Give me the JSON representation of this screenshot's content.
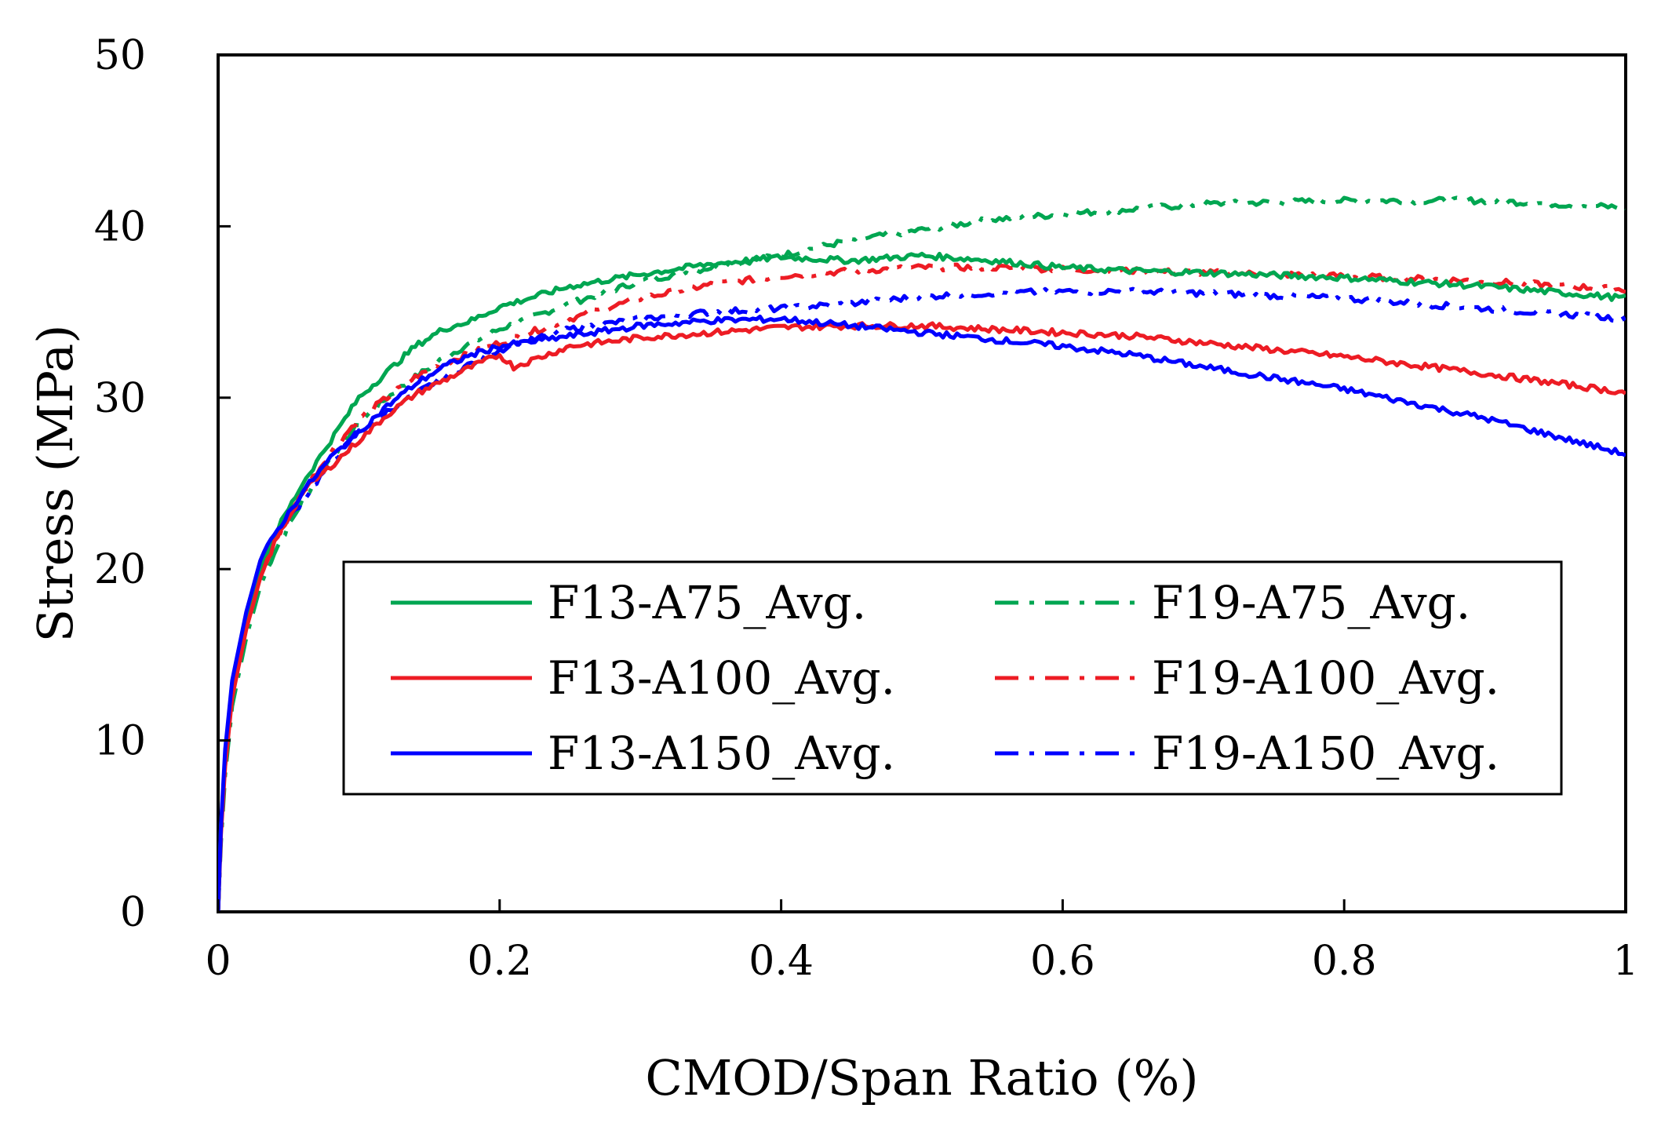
{
  "chart_data": {
    "type": "line",
    "title": "",
    "xlabel": "CMOD/Span Ratio (%)",
    "ylabel": "Stress (MPa)",
    "xlim": [
      0,
      1
    ],
    "ylim": [
      0,
      50
    ],
    "xticks": [
      0,
      0.2,
      0.4,
      0.6,
      0.8,
      1
    ],
    "xtick_labels": [
      "0",
      "0.2",
      "0.4",
      "0.6",
      "0.8",
      "1"
    ],
    "yticks": [
      0,
      10,
      20,
      30,
      40,
      50
    ],
    "ytick_labels": [
      "0",
      "10",
      "20",
      "30",
      "40",
      "50"
    ],
    "grid": false,
    "legend_position": "lower-right inside",
    "series": [
      {
        "name": "F13-A75_Avg.",
        "color": "#00A651",
        "style": "solid",
        "x": [
          0,
          0.002,
          0.005,
          0.01,
          0.02,
          0.03,
          0.04,
          0.06,
          0.08,
          0.1,
          0.12,
          0.14,
          0.16,
          0.18,
          0.2,
          0.25,
          0.3,
          0.35,
          0.4,
          0.45,
          0.5,
          0.55,
          0.6,
          0.65,
          0.7,
          0.8,
          0.9,
          1.0
        ],
        "y": [
          0,
          5,
          9,
          13,
          17,
          20,
          22,
          25,
          27.5,
          30,
          31.5,
          33,
          34,
          34.5,
          35.3,
          36.5,
          37.2,
          37.8,
          38.2,
          38.0,
          38.3,
          38.0,
          37.6,
          37.4,
          37.3,
          37.0,
          36.5,
          35.8
        ]
      },
      {
        "name": "F13-A100_Avg.",
        "color": "#ED1C24",
        "style": "solid",
        "x": [
          0,
          0.002,
          0.005,
          0.01,
          0.02,
          0.03,
          0.04,
          0.06,
          0.08,
          0.1,
          0.12,
          0.14,
          0.16,
          0.18,
          0.2,
          0.21,
          0.25,
          0.3,
          0.35,
          0.4,
          0.45,
          0.5,
          0.55,
          0.6,
          0.65,
          0.7,
          0.8,
          0.9,
          1.0
        ],
        "y": [
          0,
          4.5,
          8.5,
          12.5,
          16.5,
          19.5,
          21.5,
          24.5,
          26,
          27.5,
          29,
          30.2,
          31,
          31.8,
          32.5,
          31.8,
          33,
          33.5,
          33.8,
          34.1,
          34.2,
          34.2,
          34.0,
          33.8,
          33.6,
          33.2,
          32.4,
          31.4,
          30.3
        ]
      },
      {
        "name": "F13-A150_Avg.",
        "color": "#0000FF",
        "style": "solid",
        "x": [
          0,
          0.002,
          0.005,
          0.01,
          0.02,
          0.03,
          0.04,
          0.06,
          0.08,
          0.1,
          0.12,
          0.14,
          0.16,
          0.18,
          0.2,
          0.25,
          0.3,
          0.35,
          0.4,
          0.45,
          0.5,
          0.55,
          0.6,
          0.65,
          0.7,
          0.8,
          0.9,
          1.0
        ],
        "y": [
          0,
          5,
          9.5,
          13.5,
          17.5,
          20.5,
          22,
          24.5,
          26.5,
          28,
          29.5,
          30.8,
          31.8,
          32.5,
          33.0,
          33.6,
          34.2,
          34.5,
          34.6,
          34.2,
          33.8,
          33.4,
          33.0,
          32.5,
          31.8,
          30.5,
          28.8,
          26.7
        ]
      },
      {
        "name": "F19-A75_Avg.",
        "color": "#00A651",
        "style": "dashdot",
        "x": [
          0,
          0.002,
          0.005,
          0.01,
          0.02,
          0.03,
          0.04,
          0.06,
          0.08,
          0.1,
          0.12,
          0.14,
          0.16,
          0.18,
          0.2,
          0.25,
          0.3,
          0.35,
          0.4,
          0.45,
          0.5,
          0.55,
          0.6,
          0.65,
          0.7,
          0.8,
          0.9,
          1.0
        ],
        "y": [
          0,
          4,
          8,
          12,
          16,
          19,
          21,
          24,
          26.5,
          28.5,
          30,
          31.2,
          32.3,
          33.2,
          34,
          35.5,
          36.8,
          37.6,
          38.3,
          39.2,
          39.8,
          40.4,
          40.7,
          41.0,
          41.3,
          41.5,
          41.5,
          41.1
        ]
      },
      {
        "name": "F19-A100_Avg.",
        "color": "#ED1C24",
        "style": "dashdot",
        "x": [
          0,
          0.002,
          0.005,
          0.01,
          0.02,
          0.03,
          0.04,
          0.06,
          0.08,
          0.1,
          0.12,
          0.14,
          0.16,
          0.18,
          0.2,
          0.25,
          0.3,
          0.35,
          0.4,
          0.45,
          0.5,
          0.55,
          0.6,
          0.65,
          0.7,
          0.8,
          0.9,
          1.0
        ],
        "y": [
          0,
          4.5,
          8.5,
          12.5,
          16.5,
          19.5,
          21.5,
          24.5,
          26.8,
          28.8,
          30,
          31.2,
          32,
          32.6,
          33.2,
          34.6,
          35.8,
          36.6,
          37.1,
          37.4,
          37.6,
          37.6,
          37.5,
          37.4,
          37.3,
          37.1,
          36.8,
          36.3
        ]
      },
      {
        "name": "F19-A150_Avg.",
        "color": "#0000FF",
        "style": "dashdot",
        "x": [
          0,
          0.002,
          0.005,
          0.01,
          0.02,
          0.03,
          0.04,
          0.06,
          0.08,
          0.1,
          0.12,
          0.14,
          0.16,
          0.18,
          0.2,
          0.25,
          0.3,
          0.35,
          0.4,
          0.45,
          0.5,
          0.55,
          0.6,
          0.65,
          0.7,
          0.8,
          0.9,
          1.0
        ],
        "y": [
          0,
          4.5,
          9,
          13,
          17,
          20,
          21.8,
          24,
          26.2,
          28,
          29.2,
          30.2,
          31.2,
          32,
          32.8,
          34,
          34.6,
          35,
          35.2,
          35.5,
          35.9,
          36.1,
          36.2,
          36.2,
          36.1,
          35.8,
          35.2,
          34.6
        ]
      }
    ]
  }
}
